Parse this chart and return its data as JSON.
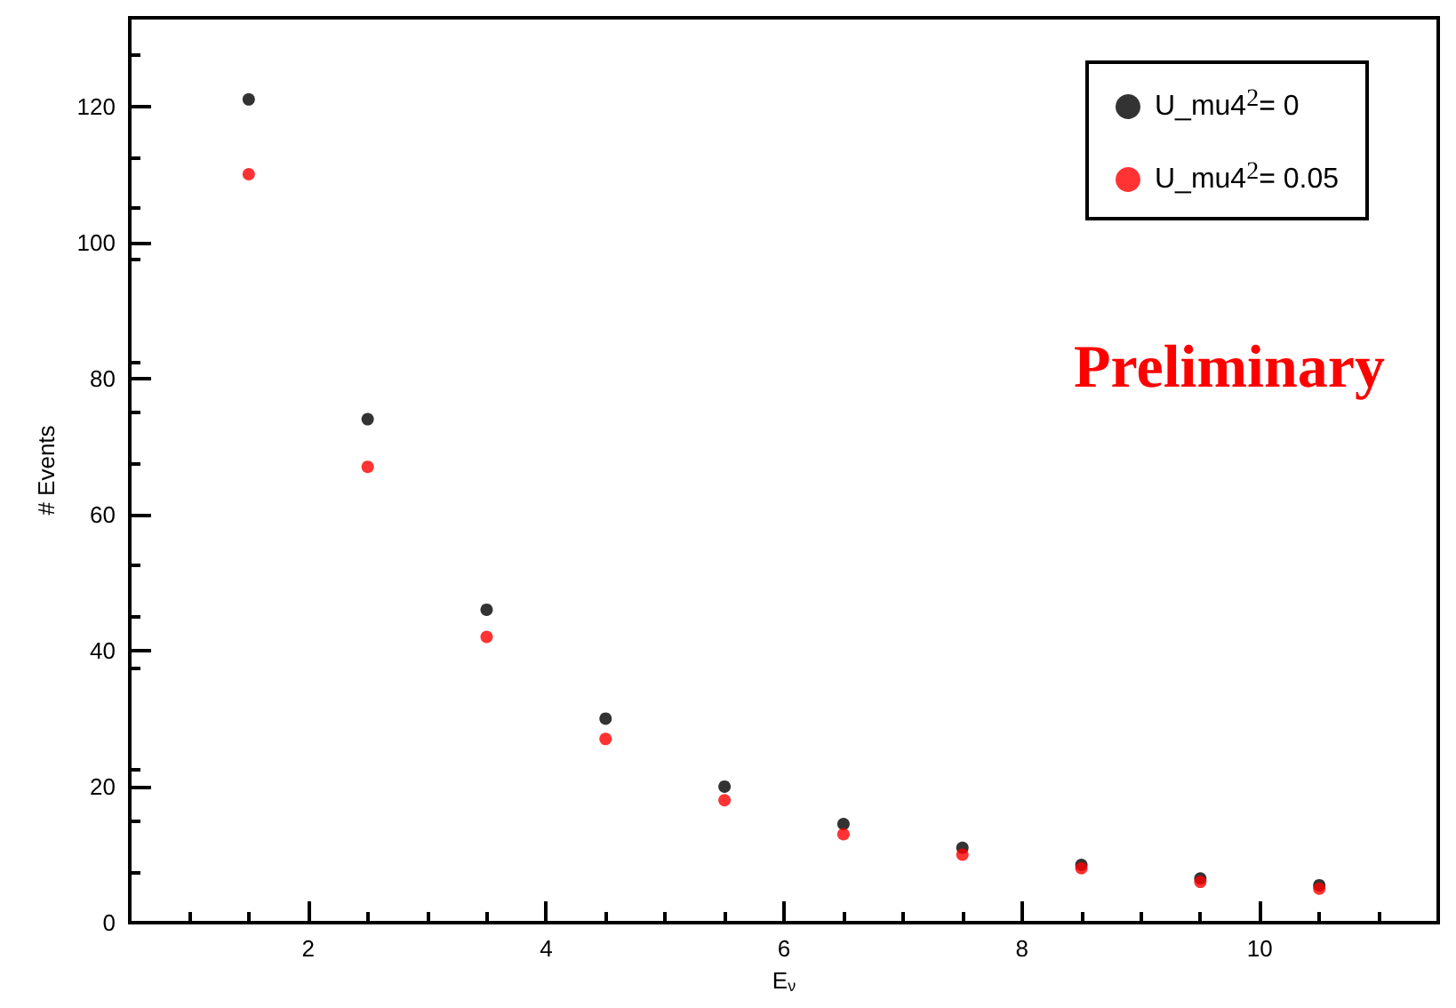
{
  "chart_data": {
    "type": "scatter",
    "xlabel": "E$_{ν}$",
    "ylabel": "# Events",
    "x": [
      1.5,
      2.5,
      3.5,
      4.5,
      5.5,
      6.5,
      7.5,
      8.5,
      9.5,
      10.5
    ],
    "series": [
      {
        "name": "U_mu4$^{2}$= 0",
        "color": "#000000",
        "values": [
          121,
          74,
          46,
          30,
          20,
          14.5,
          11,
          8.5,
          6.5,
          5.5
        ]
      },
      {
        "name": "U_mu4$^{2}$= 0.05",
        "color": "#ff0000",
        "values": [
          110,
          67,
          42,
          27,
          18,
          13,
          10,
          8,
          6,
          5
        ]
      }
    ],
    "xlim": [
      0.5,
      11.5
    ],
    "xticks": [
      2,
      4,
      6,
      8,
      10
    ],
    "ylim": [
      0,
      133
    ],
    "yticks": [
      0,
      20,
      40,
      60,
      80,
      100,
      120
    ],
    "annotations": [
      "Preliminary"
    ],
    "legend": "top right",
    "marker": "circle",
    "grid": false
  }
}
